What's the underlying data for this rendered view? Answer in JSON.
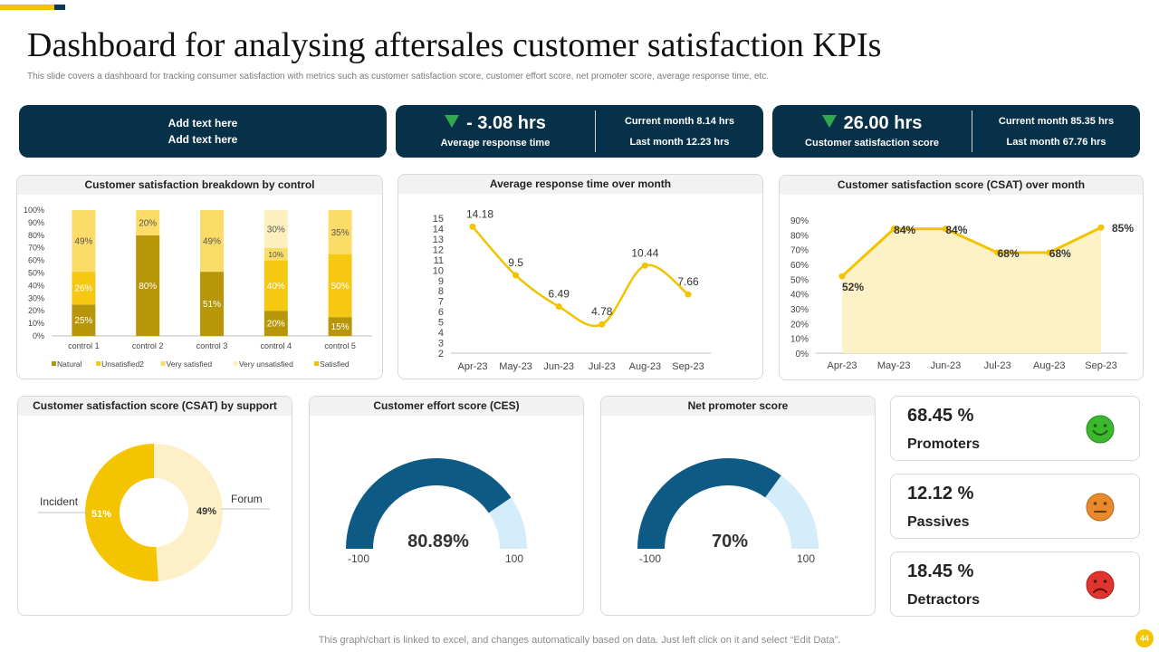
{
  "title": "Dashboard for analysing aftersales customer satisfaction KPIs",
  "subtitle": "This slide covers a dashboard for tracking consumer satisfaction with metrics such as customer satisfaction score, customer effort score, net promoter score, average response time, etc.",
  "colors": {
    "navy": "#073049",
    "yellow": "#f2c300",
    "gauge_blue": "#0d5a85",
    "gauge_light": "#d5ecfa",
    "green_arrow": "#2fa84f"
  },
  "kpis": {
    "add_text": {
      "line1": "Add text here",
      "line2": "Add text here"
    },
    "response": {
      "value": "- 3.08 hrs",
      "caption": "Average response time",
      "current": "Current month 8.14 hrs",
      "last": "Last month 12.23 hrs",
      "icon": "down-arrow-icon"
    },
    "csat": {
      "value": "26.00 hrs",
      "caption": "Customer satisfaction score",
      "current": "Current month 85.35 hrs",
      "last": "Last month 67.76 hrs",
      "icon": "down-arrow-icon"
    }
  },
  "chart_data": [
    {
      "id": "breakdown",
      "type": "bar",
      "stacked": true,
      "title": "Customer satisfaction breakdown by control",
      "categories": [
        "control 1",
        "control 2",
        "control 3",
        "control 4",
        "control 5"
      ],
      "ylim": [
        0,
        100
      ],
      "yticks": [
        "0%",
        "10%",
        "20%",
        "30%",
        "40%",
        "50%",
        "60%",
        "70%",
        "80%",
        "90%",
        "100%"
      ],
      "series": [
        {
          "name": "Natural",
          "color": "#b8960a",
          "values": [
            25,
            80,
            51,
            20,
            15
          ],
          "labels": [
            "25%",
            "80%",
            "51%",
            "20%",
            "15%"
          ]
        },
        {
          "name": "Unsatisfied2",
          "color": "#f5c812",
          "values": [
            26,
            0,
            0,
            40,
            50
          ],
          "labels": [
            "26%",
            "",
            "",
            "40%",
            "50%"
          ]
        },
        {
          "name": "Very satisfied",
          "color": "#fbdc68",
          "values": [
            49,
            20,
            49,
            10,
            35
          ],
          "labels": [
            "49%",
            "20%",
            "49%",
            "10%",
            "35%"
          ]
        },
        {
          "name": "Very unsatisfied",
          "color": "#fdf0c0",
          "values": [
            0,
            0,
            0,
            30,
            0
          ],
          "labels": [
            "",
            "",
            "",
            "30%",
            ""
          ]
        },
        {
          "name": "Satisfied",
          "color": "#f5c000",
          "values": [
            0,
            0,
            0,
            0,
            0
          ],
          "labels": [
            "",
            "",
            "",
            "",
            ""
          ]
        }
      ],
      "legend": "bottom"
    },
    {
      "id": "response",
      "type": "line",
      "title": "Average response time over month",
      "categories": [
        "Apr-23",
        "May-23",
        "Jun-23",
        "Jul-23",
        "Aug-23",
        "Sep-23"
      ],
      "values": [
        14.18,
        9.5,
        6.49,
        4.78,
        10.44,
        7.66
      ],
      "labels": [
        "14.18",
        "9.5",
        "6.49",
        "4.78",
        "10.44",
        "7.66"
      ],
      "ylim": [
        2,
        15
      ],
      "yticks": [
        "2",
        "3",
        "4",
        "5",
        "6",
        "7",
        "8",
        "9",
        "10",
        "11",
        "12",
        "13",
        "14",
        "15"
      ],
      "color": "#f2c300"
    },
    {
      "id": "csat_month",
      "type": "area",
      "title": "Customer satisfaction score (CSAT) over month",
      "categories": [
        "Apr-23",
        "May-23",
        "Jun-23",
        "Jul-23",
        "Aug-23",
        "Sep-23"
      ],
      "values": [
        52,
        84,
        84,
        68,
        68,
        85
      ],
      "labels": [
        "52%",
        "84%",
        "84%",
        "68%",
        "68%",
        "85%"
      ],
      "ylim": [
        0,
        90
      ],
      "yticks": [
        "0%",
        "10%",
        "20%",
        "30%",
        "40%",
        "50%",
        "60%",
        "70%",
        "80%",
        "90%"
      ],
      "color": "#f2c300",
      "fill": "#fdf1c6"
    },
    {
      "id": "csat_support",
      "type": "pie",
      "donut": true,
      "title": "Customer satisfaction score (CSAT) by support",
      "slices": [
        {
          "name": "Forum",
          "value": 49,
          "label": "49%",
          "color": "#fdf0c8"
        },
        {
          "name": "Incident",
          "value": 51,
          "label": "51%",
          "color": "#f5c400"
        }
      ]
    },
    {
      "id": "ces",
      "type": "gauge",
      "title": "Customer effort score (CES)",
      "value": 80.89,
      "value_label": "80.89%",
      "min_label": "-100",
      "max_label": "100"
    },
    {
      "id": "nps",
      "type": "gauge",
      "title": "Net promoter score",
      "value": 70,
      "value_label": "70%",
      "min_label": "-100",
      "max_label": "100"
    }
  ],
  "scores": [
    {
      "value": "68.45 %",
      "label": "Promoters",
      "icon": "happy-face-icon",
      "color": "#3cb82e"
    },
    {
      "value": "12.12 %",
      "label": "Passives",
      "icon": "neutral-face-icon",
      "color": "#e8892c"
    },
    {
      "value": "18.45 %",
      "label": "Detractors",
      "icon": "sad-face-icon",
      "color": "#e0352f"
    }
  ],
  "footer": "This graph/chart is linked to excel,  and changes automatically based on data. Just left click on it and select “Edit Data”.",
  "page_number": "44"
}
